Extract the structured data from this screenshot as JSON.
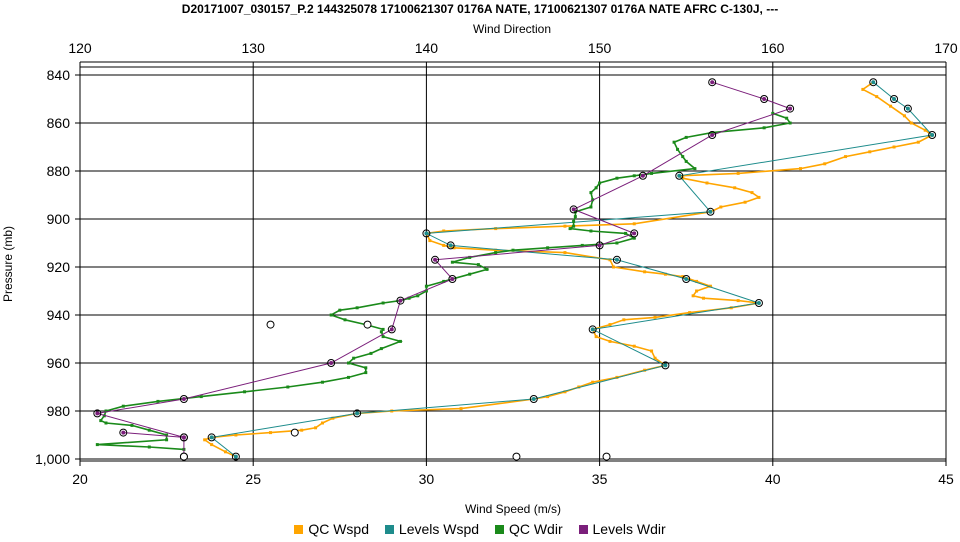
{
  "chart_data": {
    "type": "line",
    "title": "D20171007_030157_P.2 144325078 17100621307 0176A NATE, 17100621307 0176A NATE AFRC C-130J, ---",
    "xlabel": "Wind Speed (m/s)",
    "x2label": "Wind Direction",
    "ylabel": "Pressure (mb)",
    "xlim": [
      20,
      45
    ],
    "x2lim": [
      120,
      170
    ],
    "ylim": [
      1000,
      840
    ],
    "xticks": [
      20,
      25,
      30,
      35,
      40,
      45
    ],
    "x2ticks": [
      120,
      130,
      140,
      150,
      160,
      170
    ],
    "yticks": [
      840,
      860,
      880,
      900,
      920,
      940,
      960,
      980,
      "1,000"
    ],
    "grid": true,
    "legend_position": "bottom",
    "series": [
      {
        "name": "QC Wspd",
        "axis": "bottom",
        "color": "#FFA500",
        "points": [
          [
            24.5,
            999
          ],
          [
            24.2,
            997
          ],
          [
            23.8,
            994
          ],
          [
            23.6,
            992
          ],
          [
            23.8,
            991
          ],
          [
            24.5,
            990
          ],
          [
            25.5,
            989
          ],
          [
            26.4,
            988
          ],
          [
            26.8,
            987
          ],
          [
            27.0,
            985
          ],
          [
            27.3,
            983
          ],
          [
            28.0,
            981
          ],
          [
            29.0,
            980
          ],
          [
            31.0,
            979
          ],
          [
            33.1,
            975
          ],
          [
            33.5,
            974
          ],
          [
            34.0,
            972
          ],
          [
            34.4,
            970
          ],
          [
            34.8,
            968
          ],
          [
            35.5,
            966
          ],
          [
            36.3,
            963
          ],
          [
            36.9,
            961
          ],
          [
            36.6,
            958
          ],
          [
            36.5,
            955
          ],
          [
            36.0,
            953
          ],
          [
            35.3,
            951
          ],
          [
            34.9,
            949
          ],
          [
            34.8,
            946
          ],
          [
            35.3,
            944
          ],
          [
            35.7,
            942
          ],
          [
            36.6,
            941
          ],
          [
            37.6,
            939
          ],
          [
            38.8,
            937
          ],
          [
            39.6,
            935
          ],
          [
            39.0,
            934
          ],
          [
            38.0,
            933
          ],
          [
            37.7,
            932
          ],
          [
            37.8,
            930
          ],
          [
            38.2,
            928
          ],
          [
            37.8,
            926
          ],
          [
            37.4,
            924
          ],
          [
            36.9,
            923
          ],
          [
            36.3,
            922
          ],
          [
            35.4,
            920
          ],
          [
            35.3,
            917
          ],
          [
            34.0,
            914
          ],
          [
            32.0,
            913
          ],
          [
            30.8,
            912
          ],
          [
            30.5,
            911
          ],
          [
            30.1,
            909
          ],
          [
            30.0,
            906
          ],
          [
            30.5,
            905
          ],
          [
            32.0,
            904
          ],
          [
            34.0,
            903
          ],
          [
            36.0,
            902
          ],
          [
            38.2,
            897
          ],
          [
            38.5,
            895
          ],
          [
            39.2,
            893
          ],
          [
            39.6,
            891
          ],
          [
            39.4,
            889
          ],
          [
            38.9,
            887
          ],
          [
            38.1,
            885
          ],
          [
            37.4,
            883
          ],
          [
            37.3,
            882
          ],
          [
            39.0,
            881
          ],
          [
            40.8,
            879
          ],
          [
            41.5,
            877
          ],
          [
            42.1,
            874
          ],
          [
            42.8,
            872
          ],
          [
            43.5,
            870
          ],
          [
            44.2,
            868
          ],
          [
            44.6,
            865
          ],
          [
            44.4,
            863
          ],
          [
            44.0,
            860
          ],
          [
            43.8,
            857
          ],
          [
            43.4,
            853
          ],
          [
            43.0,
            849
          ],
          [
            42.6,
            846
          ],
          [
            42.9,
            843
          ]
        ]
      },
      {
        "name": "Levels Wspd",
        "axis": "bottom",
        "color": "#1E8C8C",
        "points": [
          [
            24.5,
            999
          ],
          [
            23.8,
            991
          ],
          [
            28.0,
            981
          ],
          [
            33.1,
            975
          ],
          [
            36.9,
            961
          ],
          [
            34.8,
            946
          ],
          [
            39.6,
            935
          ],
          [
            37.5,
            925
          ],
          [
            35.5,
            917
          ],
          [
            30.7,
            911
          ],
          [
            30.0,
            906
          ],
          [
            38.2,
            897
          ],
          [
            37.3,
            882
          ],
          [
            44.6,
            865
          ],
          [
            43.9,
            854
          ],
          [
            43.5,
            850
          ],
          [
            42.9,
            843
          ]
        ]
      },
      {
        "name": "QC Wdir",
        "axis": "top",
        "color": "#1A8A1A",
        "points": [
          [
            126,
            996
          ],
          [
            124,
            995
          ],
          [
            121,
            994
          ],
          [
            125,
            992
          ],
          [
            125,
            990
          ],
          [
            124,
            988
          ],
          [
            123,
            986
          ],
          [
            121.5,
            985
          ],
          [
            121.2,
            984
          ],
          [
            121.4,
            982
          ],
          [
            121.5,
            980
          ],
          [
            122.5,
            978
          ],
          [
            124.5,
            976
          ],
          [
            127,
            974
          ],
          [
            129.5,
            972
          ],
          [
            132,
            970
          ],
          [
            134,
            968
          ],
          [
            135.5,
            966
          ],
          [
            136.5,
            964
          ],
          [
            136.5,
            962
          ],
          [
            135.5,
            960
          ],
          [
            135.8,
            958
          ],
          [
            136.8,
            956
          ],
          [
            137.4,
            954
          ],
          [
            138.5,
            951
          ],
          [
            137.5,
            949
          ],
          [
            137.4,
            947
          ],
          [
            137.5,
            946
          ],
          [
            136.5,
            944
          ],
          [
            135.3,
            942
          ],
          [
            134.5,
            940
          ],
          [
            135,
            938
          ],
          [
            136,
            937
          ],
          [
            137.5,
            935
          ],
          [
            138.5,
            934
          ],
          [
            139,
            933
          ],
          [
            139.5,
            932
          ],
          [
            140,
            930
          ],
          [
            140,
            928
          ],
          [
            141,
            926
          ],
          [
            142.5,
            923
          ],
          [
            143.5,
            921
          ],
          [
            143,
            919
          ],
          [
            141.5,
            918
          ],
          [
            142.5,
            916
          ],
          [
            144,
            914
          ],
          [
            145,
            913
          ],
          [
            147,
            912
          ],
          [
            149,
            911
          ],
          [
            151,
            910
          ],
          [
            152,
            908
          ],
          [
            151.5,
            906
          ],
          [
            149.5,
            905
          ],
          [
            148.3,
            904
          ],
          [
            148.5,
            903
          ],
          [
            148.5,
            901
          ],
          [
            148.6,
            899
          ],
          [
            148.6,
            897
          ],
          [
            149.5,
            895
          ],
          [
            149.6,
            892
          ],
          [
            149.5,
            889
          ],
          [
            149.8,
            887
          ],
          [
            150,
            885
          ],
          [
            151,
            883
          ],
          [
            152,
            882
          ],
          [
            153,
            881
          ],
          [
            155.5,
            879
          ],
          [
            155,
            876
          ],
          [
            154.8,
            874
          ],
          [
            154.5,
            871
          ],
          [
            154.3,
            868
          ],
          [
            155,
            866
          ],
          [
            156.5,
            864
          ],
          [
            159.5,
            862
          ],
          [
            161,
            860
          ],
          [
            160.8,
            858
          ],
          [
            160,
            856
          ]
        ]
      },
      {
        "name": "Levels Wdir",
        "axis": "top",
        "color": "#7B1F7B",
        "points": [
          [
            126,
            999
          ],
          [
            126,
            991
          ],
          [
            122.5,
            989
          ],
          [
            126,
            991
          ],
          [
            121,
            981
          ],
          [
            126,
            975
          ],
          [
            134.5,
            960
          ],
          [
            138,
            946
          ],
          [
            138.5,
            934
          ],
          [
            141.5,
            925
          ],
          [
            140.5,
            917
          ],
          [
            150,
            911
          ],
          [
            152,
            906
          ],
          [
            148.5,
            896
          ],
          [
            152.5,
            882
          ],
          [
            156.5,
            865
          ],
          [
            161,
            854
          ],
          [
            159.5,
            850
          ],
          [
            156.5,
            843
          ]
        ]
      }
    ],
    "outlier_points": [
      {
        "series": "QC Wspd",
        "points": [
          [
            23,
            999
          ],
          [
            26.2,
            989
          ],
          [
            25.5,
            944
          ],
          [
            28.3,
            944
          ],
          [
            32.6,
            999
          ],
          [
            35.2,
            999
          ]
        ]
      }
    ]
  },
  "legend": {
    "items": [
      {
        "label": "QC Wspd",
        "color": "#FFA500"
      },
      {
        "label": "Levels Wspd",
        "color": "#1E8C8C"
      },
      {
        "label": "QC Wdir",
        "color": "#1A8A1A"
      },
      {
        "label": "Levels Wdir",
        "color": "#7B1F7B"
      }
    ]
  }
}
